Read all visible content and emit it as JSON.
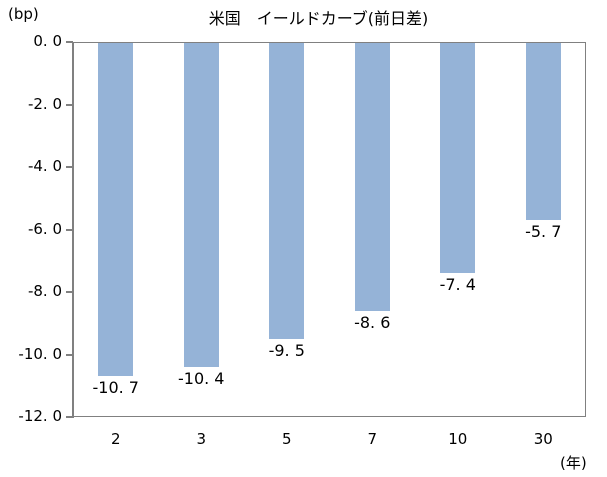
{
  "chart_data": {
    "type": "bar",
    "title": "米国　イールドカーブ(前日差)",
    "xlabel": "(年)",
    "ylabel": "(bp)",
    "categories": [
      "2",
      "3",
      "5",
      "7",
      "10",
      "30"
    ],
    "values": [
      -10.7,
      -10.4,
      -9.5,
      -8.6,
      -7.4,
      -5.7
    ],
    "data_labels": [
      "-10.7",
      "-10.4",
      "-9.5",
      "-8.6",
      "-7.4",
      "-5.7"
    ],
    "ylim": [
      -12.0,
      0.0
    ],
    "yticks": [
      "0.0",
      "-2.0",
      "-4.0",
      "-6.0",
      "-8.0",
      "-10.0",
      "-12.0"
    ],
    "grid": false,
    "legend": null,
    "bar_color": "#95b3d7"
  }
}
